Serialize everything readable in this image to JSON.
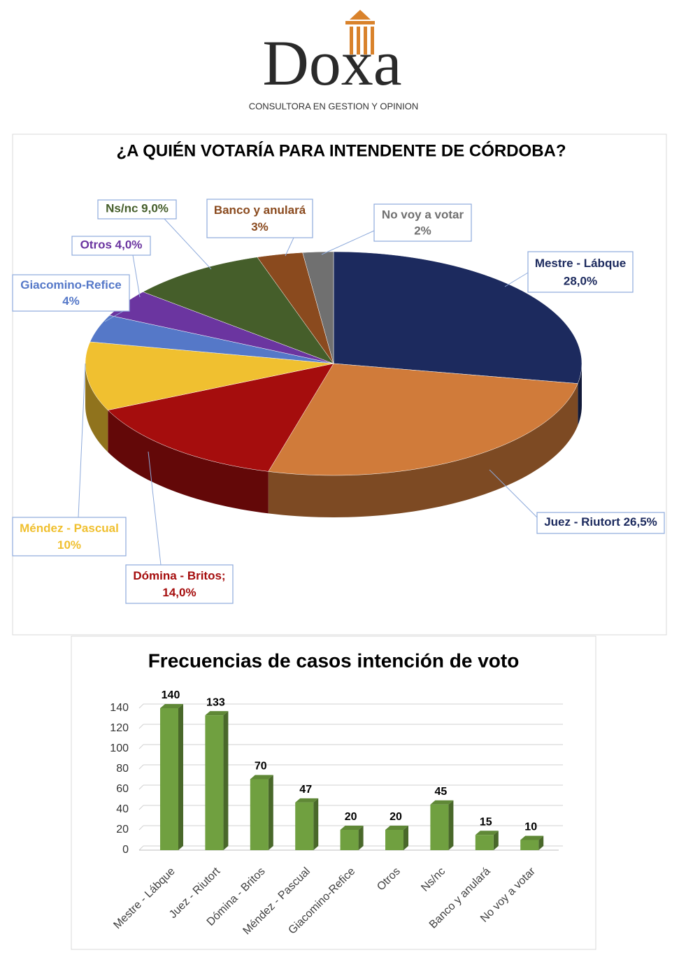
{
  "logo": {
    "name": "Doxa",
    "tagline": "CONSULTORA EN GESTION Y OPINION"
  },
  "chart_data": [
    {
      "type": "pie",
      "title": "¿A QUIÉN VOTARÍA PARA INTENDENTE DE CÓRDOBA?",
      "categories": [
        "Mestre - Lábque",
        "Juez - Riutort",
        "Dómina - Britos;",
        "Méndez - Pascual",
        "Giacomino-Refice",
        "Otros",
        "Ns/nc",
        "Banco y anulará",
        "No voy a votar"
      ],
      "values": [
        28,
        26.5,
        14,
        10,
        4,
        4,
        9,
        3,
        2
      ],
      "value_labels": [
        "28,0%",
        "26,5%",
        "14,0%",
        "10%",
        "4%",
        "4,0%",
        "9,0%",
        "3%",
        "2%"
      ],
      "colors": [
        "#1c2a5e",
        "#d07b3a",
        "#a50d0d",
        "#f0c030",
        "#5578c8",
        "#6b35a0",
        "#455e2a",
        "#8a4a1e",
        "#707070"
      ]
    },
    {
      "type": "bar",
      "title": "Frecuencias de casos intención de voto",
      "categories": [
        "Mestre - Lábque",
        "Juez - Riutort",
        "Dómina - Britos",
        "Méndez - Pascual",
        "Giacomino-Refice",
        "Otros",
        "Ns/nc",
        "Banco y anulará",
        "No voy a votar"
      ],
      "values": [
        140,
        133,
        70,
        47,
        20,
        20,
        45,
        15,
        10
      ],
      "color": "#70a040",
      "ylim": [
        0,
        140
      ],
      "yticks": [
        0,
        20,
        40,
        60,
        80,
        100,
        120,
        140
      ],
      "grid": true
    }
  ]
}
